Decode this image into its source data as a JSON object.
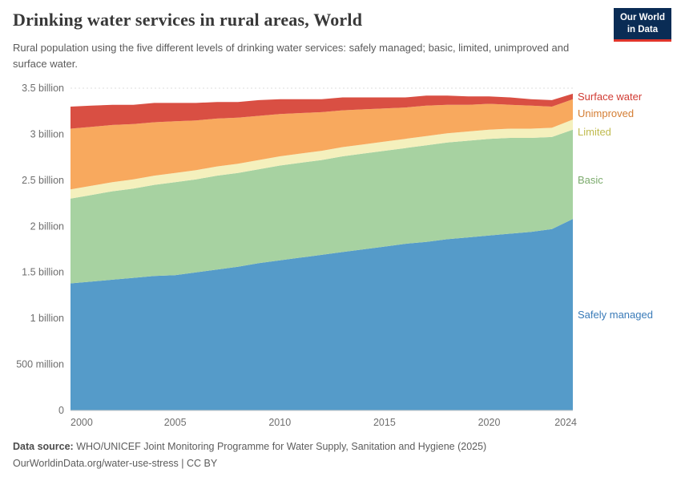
{
  "header": {
    "title": "Drinking water services in rural areas, World",
    "subtitle": "Rural population using the five different levels of drinking water services: safely managed; basic, limited, unimproved and surface water.",
    "logo": {
      "line1": "Our World",
      "line2": "in Data",
      "bg": "#0a2c55",
      "accent": "#e0352b"
    }
  },
  "footer": {
    "source_label": "Data source:",
    "source_text": " WHO/UNICEF Joint Monitoring Programme for Water Supply, Sanitation and Hygiene (2025)",
    "link": "OurWorldinData.org/water-use-stress",
    "separator": " | ",
    "license": "CC BY"
  },
  "chart_data": {
    "type": "area",
    "stacked": true,
    "title": "Drinking water services in rural areas, World",
    "unit": "billion people",
    "ylim": [
      0,
      3.5
    ],
    "grid": "dashed-horizontal",
    "legend_position": "right-edge-labels",
    "x": [
      2000,
      2001,
      2002,
      2003,
      2004,
      2005,
      2006,
      2007,
      2008,
      2009,
      2010,
      2011,
      2012,
      2013,
      2014,
      2015,
      2016,
      2017,
      2018,
      2019,
      2020,
      2021,
      2022,
      2023,
      2024
    ],
    "x_ticks": [
      2000,
      2005,
      2010,
      2015,
      2020,
      2024
    ],
    "y_ticks": [
      {
        "value": 0,
        "label": "0"
      },
      {
        "value": 0.5,
        "label": "500 million"
      },
      {
        "value": 1,
        "label": "1 billion"
      },
      {
        "value": 1.5,
        "label": "1.5 billion"
      },
      {
        "value": 2,
        "label": "2 billion"
      },
      {
        "value": 2.5,
        "label": "2.5 billion"
      },
      {
        "value": 3,
        "label": "3 billion"
      },
      {
        "value": 3.5,
        "label": "3.5 billion"
      }
    ],
    "series": [
      {
        "name": "Safely managed",
        "color": "#559bc9",
        "label_color": "#3a7bb8",
        "values": [
          1.38,
          1.4,
          1.42,
          1.44,
          1.46,
          1.47,
          1.5,
          1.53,
          1.56,
          1.6,
          1.63,
          1.66,
          1.69,
          1.72,
          1.75,
          1.78,
          1.81,
          1.83,
          1.86,
          1.88,
          1.9,
          1.92,
          1.94,
          1.97,
          2.08
        ]
      },
      {
        "name": "Basic",
        "color": "#a7d2a1",
        "label_color": "#7cab6d",
        "values": [
          0.92,
          0.94,
          0.96,
          0.97,
          0.99,
          1.01,
          1.01,
          1.02,
          1.02,
          1.02,
          1.03,
          1.03,
          1.03,
          1.04,
          1.04,
          1.04,
          1.04,
          1.05,
          1.05,
          1.05,
          1.05,
          1.04,
          1.02,
          1.0,
          0.97
        ]
      },
      {
        "name": "Limited",
        "color": "#f4f0bd",
        "label_color": "#c0bb4f",
        "values": [
          0.1,
          0.1,
          0.1,
          0.1,
          0.1,
          0.1,
          0.1,
          0.1,
          0.1,
          0.1,
          0.1,
          0.1,
          0.1,
          0.1,
          0.1,
          0.1,
          0.1,
          0.1,
          0.1,
          0.1,
          0.1,
          0.1,
          0.1,
          0.1,
          0.11
        ]
      },
      {
        "name": "Unimproved",
        "color": "#f8a95e",
        "label_color": "#d47d33",
        "values": [
          0.66,
          0.64,
          0.62,
          0.6,
          0.58,
          0.56,
          0.54,
          0.52,
          0.5,
          0.48,
          0.46,
          0.44,
          0.42,
          0.4,
          0.38,
          0.36,
          0.34,
          0.33,
          0.31,
          0.29,
          0.28,
          0.26,
          0.25,
          0.23,
          0.22
        ]
      },
      {
        "name": "Surface water",
        "color": "#d94f43",
        "label_color": "#d13b33",
        "values": [
          0.24,
          0.23,
          0.22,
          0.21,
          0.21,
          0.2,
          0.19,
          0.18,
          0.17,
          0.17,
          0.16,
          0.15,
          0.14,
          0.14,
          0.13,
          0.12,
          0.11,
          0.11,
          0.1,
          0.09,
          0.08,
          0.08,
          0.07,
          0.07,
          0.06
        ]
      }
    ]
  }
}
